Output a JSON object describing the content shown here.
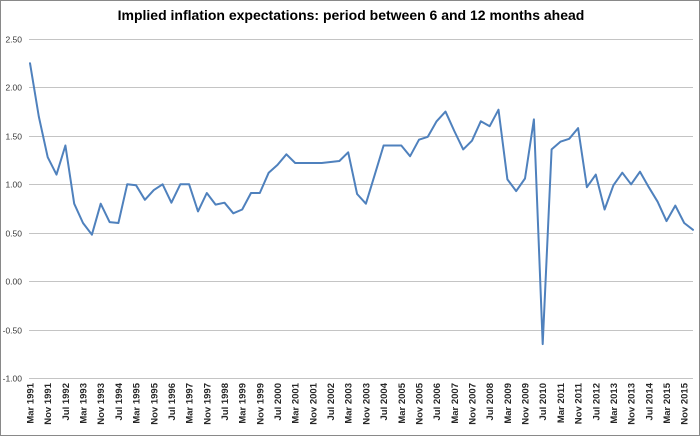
{
  "title": "Implied inflation expectations: period between 6 and 12 months ahead",
  "chart_data": {
    "type": "line",
    "title": "Implied inflation expectations: period between 6 and 12 months ahead",
    "xlabel": "",
    "ylabel": "",
    "ylim": [
      -1.0,
      2.5
    ],
    "grid": true,
    "legend": "none",
    "series_name": "Implied inflation expectations",
    "series_color": "#4F81BD",
    "gridline_color": "#C4C4C4",
    "y_ticks": [
      2.5,
      2.0,
      1.5,
      1.0,
      0.5,
      0.0,
      -0.5,
      -1.0
    ],
    "y_tick_labels": [
      "2.50",
      "2.00",
      "1.50",
      "1.00",
      "0.50",
      "0.00",
      "-0.50",
      "-1.00"
    ],
    "label_every": 2,
    "x_labels_shown": [
      "Mar 1991",
      "Nov 1991",
      "Jul 1992",
      "Mar 1993",
      "Nov 1993",
      "Jul 1994",
      "Mar 1995",
      "Nov 1995",
      "Jul 1996",
      "Mar 1997",
      "Nov 1997",
      "Jul 1998",
      "Mar 1999",
      "Nov 1999",
      "Jul 2000",
      "Mar 2001",
      "Nov 2001",
      "Jul 2002",
      "Mar 2003",
      "Nov 2003",
      "Jul 2004",
      "Mar 2005",
      "Nov 2005",
      "Jul 2006",
      "Mar 2007",
      "Nov 2007",
      "Jul 2008",
      "Mar 2009",
      "Nov 2009",
      "Jul 2010",
      "Mar 2011",
      "Nov 2011",
      "Jul 2012",
      "Mar 2013",
      "Nov 2013",
      "Jul 2014",
      "Mar 2015",
      "Nov 2015"
    ],
    "x": [
      "Mar 1991",
      "Jul 1991",
      "Nov 1991",
      "Mar 1992",
      "Jul 1992",
      "Nov 1992",
      "Mar 1993",
      "Jul 1993",
      "Nov 1993",
      "Mar 1994",
      "Jul 1994",
      "Nov 1994",
      "Mar 1995",
      "Jul 1995",
      "Nov 1995",
      "Mar 1996",
      "Jul 1996",
      "Nov 1996",
      "Mar 1997",
      "Jul 1997",
      "Nov 1997",
      "Mar 1998",
      "Jul 1998",
      "Nov 1998",
      "Mar 1999",
      "Jul 1999",
      "Nov 1999",
      "Mar 2000",
      "Jul 2000",
      "Nov 2000",
      "Mar 2001",
      "Jul 2001",
      "Nov 2001",
      "Mar 2002",
      "Jul 2002",
      "Nov 2002",
      "Mar 2003",
      "Jul 2003",
      "Nov 2003",
      "Mar 2004",
      "Jul 2004",
      "Nov 2004",
      "Mar 2005",
      "Jul 2005",
      "Nov 2005",
      "Mar 2006",
      "Jul 2006",
      "Nov 2006",
      "Mar 2007",
      "Jul 2007",
      "Nov 2007",
      "Mar 2008",
      "Jul 2008",
      "Nov 2008",
      "Mar 2009",
      "Jul 2009",
      "Nov 2009",
      "Mar 2010",
      "Jul 2010",
      "Nov 2010",
      "Mar 2011",
      "Jul 2011",
      "Nov 2011",
      "Mar 2012",
      "Jul 2012",
      "Nov 2012",
      "Mar 2013",
      "Jul 2013",
      "Nov 2013",
      "Mar 2014",
      "Jul 2014",
      "Nov 2014",
      "Mar 2015",
      "Jul 2015",
      "Nov 2015",
      "Mar 2016"
    ],
    "values": [
      2.25,
      1.7,
      1.28,
      1.1,
      1.4,
      0.8,
      0.6,
      0.48,
      0.8,
      0.61,
      0.6,
      1.0,
      0.99,
      0.84,
      0.94,
      1.0,
      0.81,
      1.0,
      1.0,
      0.72,
      0.91,
      0.79,
      0.81,
      0.7,
      0.74,
      0.91,
      0.91,
      1.12,
      1.2,
      1.31,
      1.22,
      1.22,
      1.22,
      1.22,
      1.23,
      1.24,
      1.33,
      0.9,
      0.8,
      1.1,
      1.4,
      1.4,
      1.4,
      1.29,
      1.46,
      1.49,
      1.65,
      1.75,
      1.55,
      1.36,
      1.45,
      1.65,
      1.6,
      1.77,
      1.05,
      0.93,
      1.06,
      1.67,
      -0.65,
      1.36,
      1.44,
      1.47,
      1.58,
      0.97,
      1.1,
      0.74,
      0.99,
      1.12,
      1.0,
      1.13,
      0.97,
      0.82,
      0.62,
      0.78,
      0.6,
      0.53
    ]
  }
}
